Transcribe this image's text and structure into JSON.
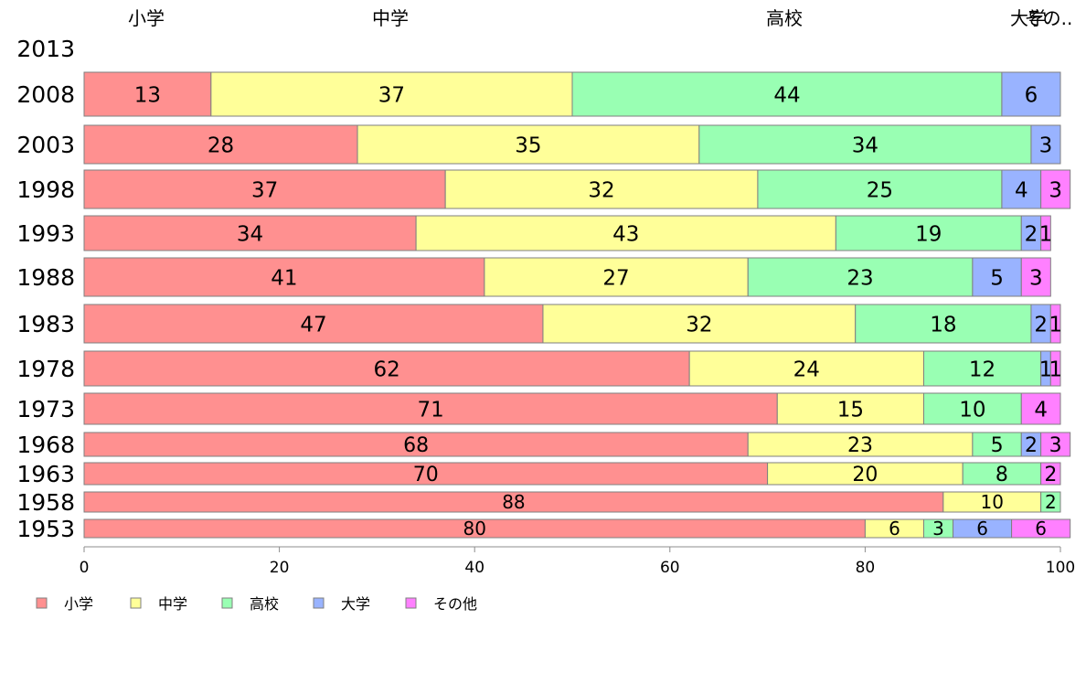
{
  "chart_data": {
    "type": "bar",
    "orientation": "horizontal",
    "stacked": true,
    "xlim": [
      0,
      100
    ],
    "x_ticks": [
      "0",
      "20",
      "40",
      "60",
      "80",
      "100"
    ],
    "legend_position": "bottom-left",
    "grid": false,
    "categories": [
      "2013",
      "2008",
      "2003",
      "1998",
      "1993",
      "1988",
      "1983",
      "1978",
      "1973",
      "1968",
      "1963",
      "1958",
      "1953"
    ],
    "series": [
      {
        "name": "小学",
        "color": "#ff9090",
        "values": [
          null,
          13,
          28,
          37,
          34,
          41,
          47,
          62,
          71,
          68,
          70,
          88,
          80
        ],
        "labels": [
          "",
          "13",
          "28",
          "37",
          "34",
          "41",
          "47",
          "62",
          "71",
          "68",
          "70",
          "88",
          "80"
        ]
      },
      {
        "name": "中学",
        "color": "#ffff99",
        "values": [
          null,
          37,
          35,
          32,
          43,
          27,
          32,
          24,
          15,
          23,
          20,
          10,
          6
        ],
        "labels": [
          "",
          "37",
          "35",
          "32",
          "43",
          "27",
          "32",
          "24",
          "15",
          "23",
          "20",
          "10",
          "6"
        ]
      },
      {
        "name": "高校",
        "color": "#99ffb3",
        "values": [
          null,
          44,
          34,
          25,
          19,
          23,
          18,
          12,
          10,
          5,
          8,
          2,
          3
        ],
        "labels": [
          "",
          "44",
          "34",
          "25",
          "19",
          "23",
          "18",
          "12",
          "10",
          "5",
          "8",
          "2",
          "3"
        ]
      },
      {
        "name": "大学",
        "color": "#99b3ff",
        "values": [
          null,
          6,
          3,
          4,
          2,
          5,
          2,
          1,
          0,
          2,
          0,
          0,
          6
        ],
        "labels": [
          "",
          "6",
          "3",
          "4",
          "2",
          "5",
          "2",
          "1",
          "",
          "2",
          "",
          "",
          "6"
        ]
      },
      {
        "name": "その他",
        "color": "#ff80ff",
        "values": [
          null,
          0,
          0,
          3,
          1,
          3,
          1,
          1,
          4,
          3,
          2,
          0,
          6
        ],
        "labels": [
          "",
          "",
          "",
          "3",
          "1",
          "3",
          "1",
          "1",
          "4",
          "3",
          "2",
          "",
          "6"
        ]
      }
    ],
    "top_labels": [
      "小学",
      "中学",
      "高校",
      "大学",
      "その.."
    ]
  }
}
